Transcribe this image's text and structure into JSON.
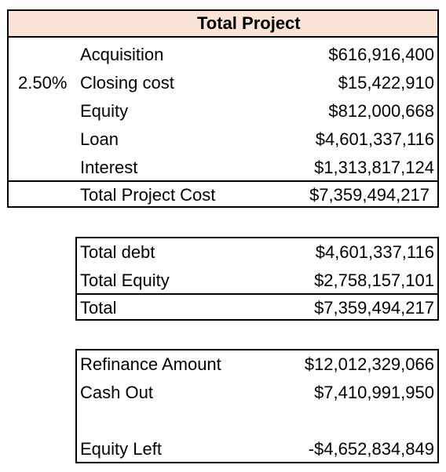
{
  "total_project": {
    "header": "Total Project",
    "rows": [
      {
        "pct": "",
        "label": "Acquisition",
        "value": "$616,916,400"
      },
      {
        "pct": "2.50%",
        "label": "Closing cost",
        "value": "$15,422,910"
      },
      {
        "pct": "",
        "label": "Equity",
        "value": "$812,000,668"
      },
      {
        "pct": "",
        "label": "Loan",
        "value": "$4,601,337,116"
      },
      {
        "pct": "",
        "label": "Interest",
        "value": "$1,313,817,124"
      }
    ],
    "total": {
      "label": "Total Project Cost",
      "value": "$7,359,494,217"
    }
  },
  "debt_equity": {
    "rows": [
      {
        "label": "Total debt",
        "value": "$4,601,337,116"
      },
      {
        "label": "Total Equity",
        "value": "$2,758,157,101"
      }
    ],
    "total": {
      "label": "Total",
      "value": "$7,359,494,217"
    }
  },
  "refinance": {
    "refinance_amount": {
      "label": "Refinance Amount",
      "value": "$12,012,329,066"
    },
    "cash_out": {
      "label": "Cash Out",
      "value": "$7,410,991,950"
    },
    "equity_left": {
      "label": "Equity Left",
      "value": "-$4,652,834,849"
    }
  }
}
